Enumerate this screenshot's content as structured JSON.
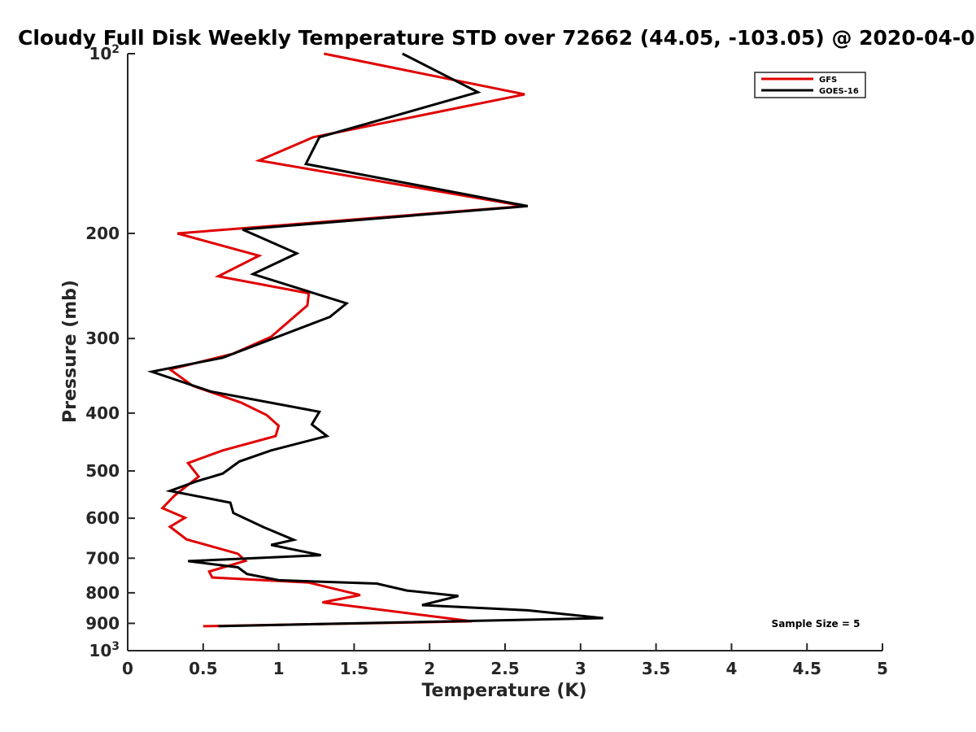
{
  "chart_data": {
    "type": "line",
    "title": "Cloudy Full Disk Weekly Temperature STD over 72662 (44.05, -103.05) @ 2020-04-0",
    "xlabel": "Temperature (K)",
    "ylabel": "Pressure (mb)",
    "xlim": [
      0,
      5
    ],
    "ylim": [
      100,
      1000
    ],
    "y_scale": "log",
    "y_reversed": true,
    "x_ticks": [
      "0",
      "0.5",
      "1",
      "1.5",
      "2",
      "2.5",
      "3",
      "3.5",
      "4",
      "4.5",
      "5"
    ],
    "y_ticks": [
      {
        "value": 100,
        "base": "10",
        "exp": "2"
      },
      {
        "value": 200,
        "label": "200"
      },
      {
        "value": 300,
        "label": "300"
      },
      {
        "value": 400,
        "label": "400"
      },
      {
        "value": 500,
        "label": "500"
      },
      {
        "value": 600,
        "label": "600"
      },
      {
        "value": 700,
        "label": "700"
      },
      {
        "value": 800,
        "label": "800"
      },
      {
        "value": 900,
        "label": "900"
      },
      {
        "value": 1000,
        "base": "10",
        "exp": "3"
      }
    ],
    "grid": false,
    "legend_position": "top-right",
    "annotation": "Sample Size = 5",
    "series": [
      {
        "name": "GFS",
        "color": "#e00000",
        "points": [
          [
            1.3,
            100
          ],
          [
            2.63,
            117
          ],
          [
            1.23,
            138
          ],
          [
            0.87,
            151
          ],
          [
            2.63,
            180
          ],
          [
            0.33,
            200
          ],
          [
            0.87,
            218
          ],
          [
            0.6,
            236
          ],
          [
            1.2,
            252
          ],
          [
            1.19,
            264
          ],
          [
            0.95,
            298
          ],
          [
            0.7,
            318
          ],
          [
            0.28,
            338
          ],
          [
            0.43,
            360
          ],
          [
            0.75,
            384
          ],
          [
            0.92,
            403
          ],
          [
            1.0,
            420
          ],
          [
            0.98,
            437
          ],
          [
            0.63,
            462
          ],
          [
            0.4,
            485
          ],
          [
            0.47,
            511
          ],
          [
            0.31,
            550
          ],
          [
            0.23,
            577
          ],
          [
            0.38,
            599
          ],
          [
            0.28,
            620
          ],
          [
            0.39,
            651
          ],
          [
            0.73,
            688
          ],
          [
            0.78,
            707
          ],
          [
            0.54,
            737
          ],
          [
            0.56,
            754
          ],
          [
            1.2,
            769
          ],
          [
            1.54,
            807
          ],
          [
            1.29,
            830
          ],
          [
            2.28,
            893
          ],
          [
            0.5,
            910
          ]
        ]
      },
      {
        "name": "GOES-16",
        "color": "#000000",
        "points": [
          [
            1.82,
            100
          ],
          [
            2.32,
            116
          ],
          [
            1.27,
            138
          ],
          [
            1.18,
            153
          ],
          [
            2.65,
            180
          ],
          [
            0.76,
            197
          ],
          [
            1.12,
            216
          ],
          [
            0.83,
            234
          ],
          [
            1.45,
            262
          ],
          [
            1.34,
            276
          ],
          [
            0.63,
            323
          ],
          [
            0.16,
            341
          ],
          [
            0.55,
            368
          ],
          [
            1.27,
            398
          ],
          [
            1.22,
            418
          ],
          [
            1.32,
            437
          ],
          [
            0.95,
            462
          ],
          [
            0.74,
            482
          ],
          [
            0.63,
            505
          ],
          [
            0.45,
            521
          ],
          [
            0.28,
            540
          ],
          [
            0.68,
            565
          ],
          [
            0.7,
            588
          ],
          [
            0.9,
            621
          ],
          [
            1.1,
            652
          ],
          [
            0.95,
            665
          ],
          [
            1.28,
            692
          ],
          [
            0.4,
            708
          ],
          [
            0.73,
            725
          ],
          [
            0.79,
            744
          ],
          [
            1.0,
            762
          ],
          [
            1.65,
            772
          ],
          [
            1.85,
            793
          ],
          [
            2.19,
            810
          ],
          [
            1.95,
            839
          ],
          [
            2.65,
            856
          ],
          [
            3.15,
            882
          ],
          [
            0.6,
            910
          ]
        ]
      }
    ]
  }
}
